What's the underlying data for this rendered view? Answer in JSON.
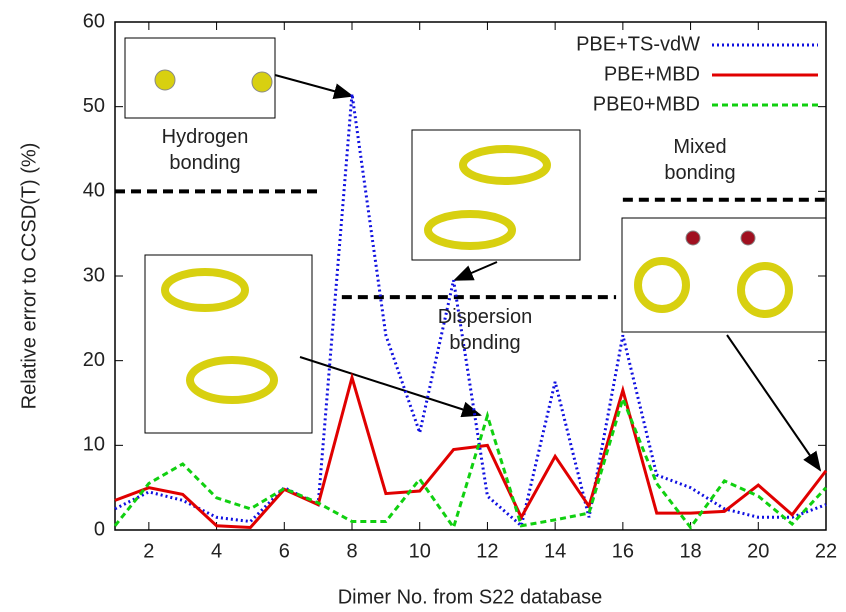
{
  "chart_data": {
    "type": "line",
    "xlabel": "Dimer No. from S22 database",
    "ylabel": "Relative error to CCSD(T) (%)",
    "x": [
      1,
      2,
      3,
      4,
      5,
      6,
      7,
      8,
      9,
      10,
      11,
      12,
      13,
      14,
      15,
      16,
      17,
      18,
      19,
      20,
      21,
      22
    ],
    "xlim": [
      1,
      22
    ],
    "xticks": [
      2,
      4,
      6,
      8,
      10,
      12,
      14,
      16,
      18,
      20,
      22
    ],
    "ylim": [
      0,
      60
    ],
    "yticks": [
      0,
      10,
      20,
      30,
      40,
      50,
      60
    ],
    "legend": "top-right",
    "series": [
      {
        "name": "PBE+TS-vdW",
        "color": "#1010e0",
        "dash": "dotted",
        "values": [
          2.5,
          4.5,
          3.5,
          1.5,
          1,
          5,
          3,
          51.5,
          23,
          11.5,
          29.5,
          4,
          0.5,
          17.5,
          1.5,
          23,
          6.5,
          5,
          2.5,
          1.5,
          1.5,
          3
        ]
      },
      {
        "name": "PBE+MBD",
        "color": "#e00000",
        "dash": "solid",
        "values": [
          3.5,
          5,
          4.2,
          0.5,
          0.3,
          4.8,
          3,
          18,
          4.3,
          4.6,
          9.5,
          10,
          1.5,
          8.7,
          2.8,
          16.5,
          2,
          2,
          2.2,
          5.3,
          1.8,
          7
        ]
      },
      {
        "name": "PBE0+MBD",
        "color": "#10d010",
        "dash": "dashed",
        "values": [
          0.5,
          5.5,
          7.8,
          3.8,
          2.5,
          4.9,
          3.2,
          1,
          1,
          6,
          0.3,
          13.5,
          0.5,
          1.2,
          2,
          15.5,
          5.5,
          0.3,
          5.8,
          4,
          0.7,
          5
        ]
      }
    ],
    "annotations": [
      {
        "text": "Hydrogen bonding",
        "y": 40,
        "x": [
          1,
          7
        ]
      },
      {
        "text": "Dispersion bonding",
        "y": 27.5,
        "x": [
          7.7,
          15.8
        ]
      },
      {
        "text": "Mixed bonding",
        "y": 39,
        "x": [
          16,
          22
        ]
      }
    ]
  }
}
